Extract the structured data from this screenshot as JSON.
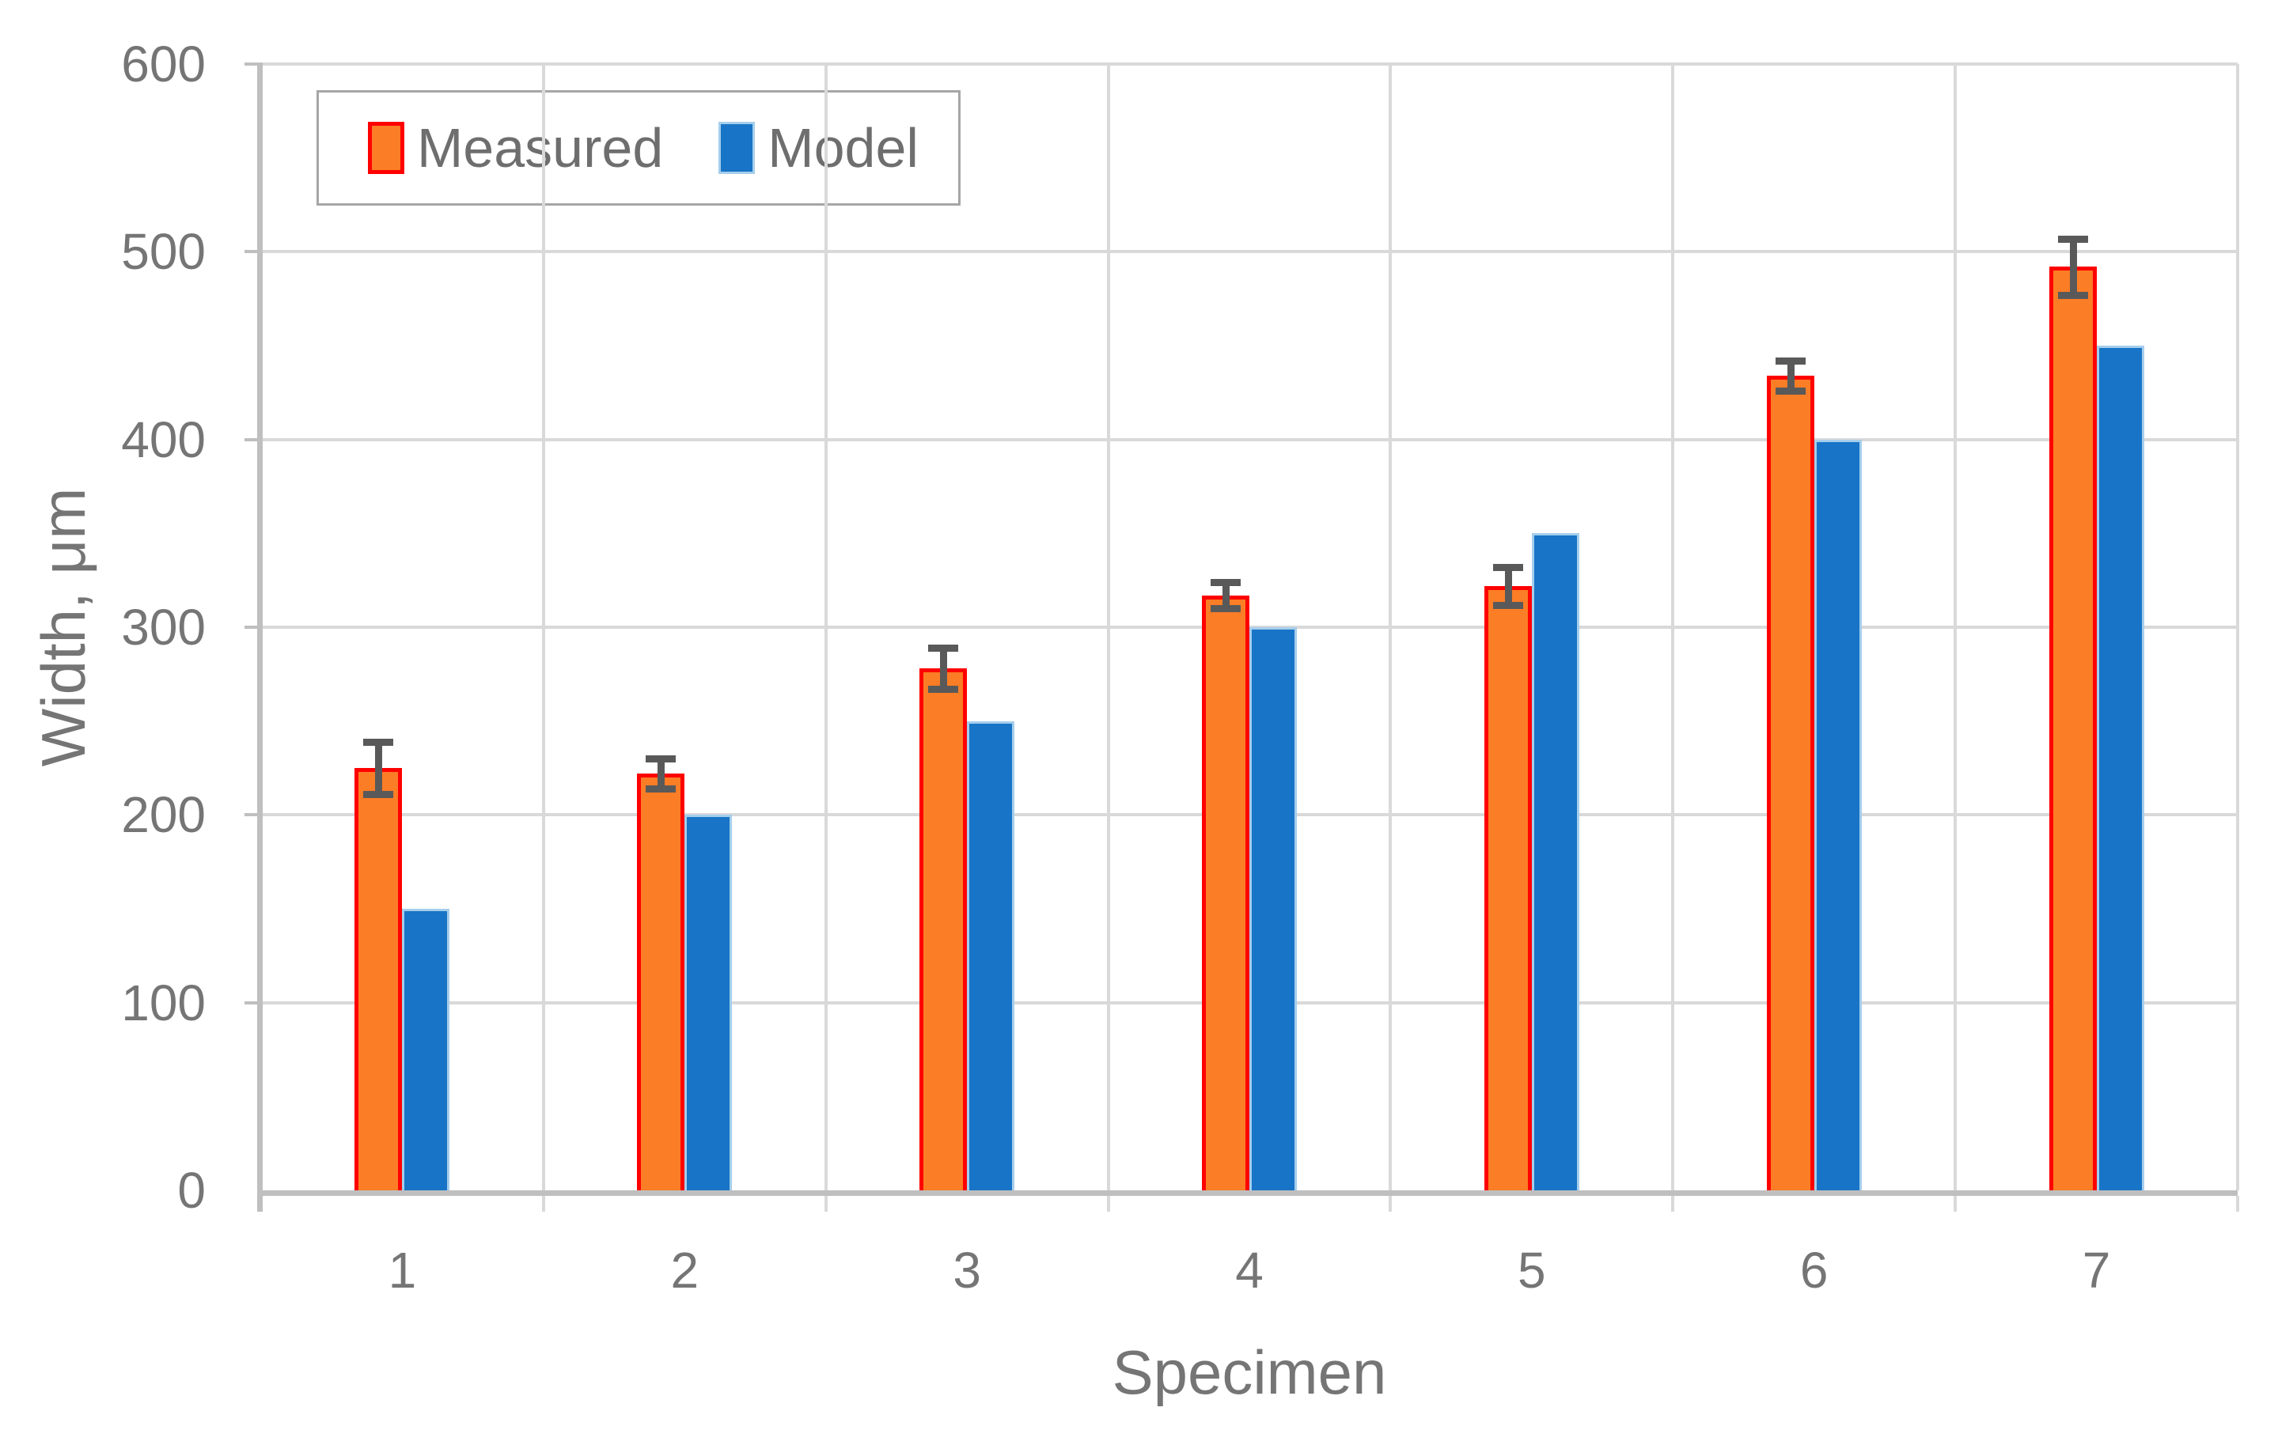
{
  "chart_data": {
    "type": "bar",
    "title": "",
    "xlabel": "Specimen",
    "ylabel": "Width, μm",
    "categories": [
      "1",
      "2",
      "3",
      "4",
      "5",
      "6",
      "7"
    ],
    "series": [
      {
        "name": "Measured",
        "values": [
          225,
          222,
          278,
          317,
          322,
          434,
          492
        ],
        "error_bars": [
          14,
          8,
          11,
          7,
          10,
          8,
          15
        ],
        "fill": "#FB7D26",
        "outline": "#FE0000"
      },
      {
        "name": "Model",
        "values": [
          150,
          200,
          250,
          300,
          350,
          400,
          450
        ],
        "error_bars": null,
        "fill": "#1874C6",
        "outline": "#A5CEEC"
      }
    ],
    "ylim": [
      0,
      600
    ],
    "yticks": [
      0,
      100,
      200,
      300,
      400,
      500,
      600
    ],
    "grid": true,
    "legend_position": "top-left"
  },
  "colors": {
    "gridline": "#D9D9D9",
    "axis_line": "#BFBFBF",
    "error_bar": "#595959",
    "tick_text": "#757575",
    "title_text": "#757575",
    "legend_text": "#6E6E6E",
    "legend_border": "#A6A6A6",
    "background": "#FFFFFF"
  }
}
